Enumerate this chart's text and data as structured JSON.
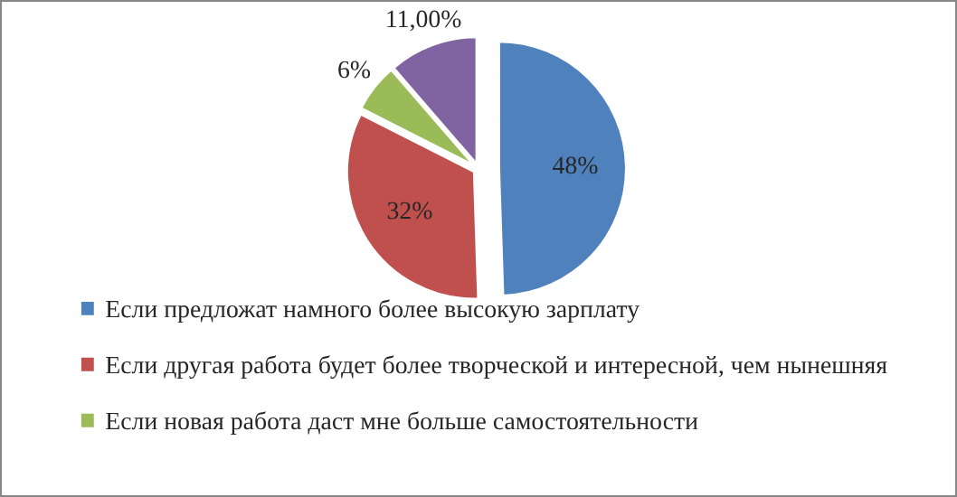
{
  "chart_data": {
    "type": "pie",
    "categories": [
      "Если предложат намного более высокую зарплату",
      "Если другая работа будет более творческой и интересной, чем нынешняя",
      "Если новая работа даст мне больше самостоятельности",
      null
    ],
    "values": [
      48,
      32,
      6,
      11
    ],
    "value_labels": [
      "48%",
      "32%",
      "6%",
      "11,00%"
    ],
    "colors": [
      "#4f81bd",
      "#c0504d",
      "#9bbb59",
      "#8064a2"
    ],
    "legend": "bottom"
  }
}
